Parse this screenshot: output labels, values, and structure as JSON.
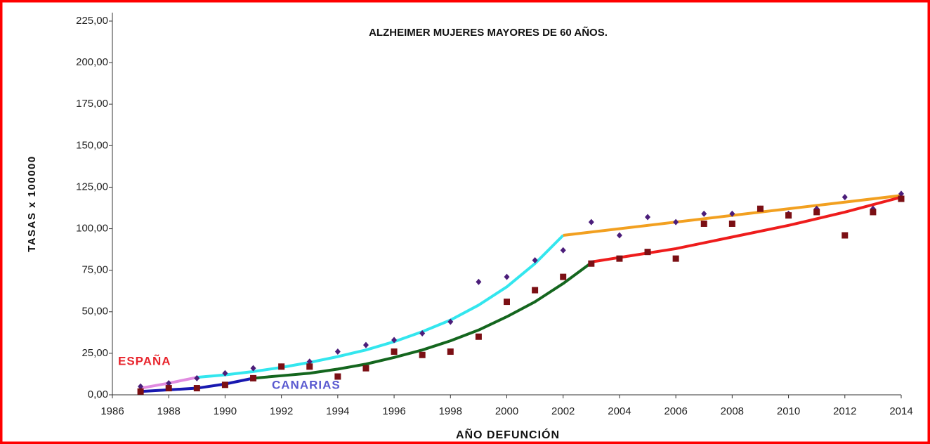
{
  "chart_data": {
    "type": "scatter",
    "title": "ALZHEIMER MUJERES MAYORES DE 60 AÑOS.",
    "x_label": "AÑO DEFUNCIÓN",
    "y_label": "TASAS x 100000",
    "xlim": [
      1986,
      2014
    ],
    "xticks": [
      1986,
      1988,
      1990,
      1992,
      1994,
      1996,
      1998,
      2000,
      2002,
      2004,
      2006,
      2008,
      2010,
      2012,
      2014
    ],
    "ylim": [
      0,
      225
    ],
    "yticks": [
      {
        "value": 0,
        "label": "0,00"
      },
      {
        "value": 25,
        "label": "25,00"
      },
      {
        "value": 50,
        "label": "50,00"
      },
      {
        "value": 75,
        "label": "75,00"
      },
      {
        "value": 100,
        "label": "100,00"
      },
      {
        "value": 125,
        "label": "125,00"
      },
      {
        "value": 150,
        "label": "150,00"
      },
      {
        "value": 175,
        "label": "175,00"
      },
      {
        "value": 200,
        "label": "200,00"
      },
      {
        "value": 225,
        "label": "225,00"
      }
    ],
    "annotations": [
      {
        "text": "ESPAÑA",
        "color": "#e8242c"
      },
      {
        "text": "CANARIAS",
        "color": "#5a5ad0"
      }
    ],
    "series": [
      {
        "color": "#4b1d7a",
        "marker": "diamond",
        "x": [
          1987,
          1988,
          1989,
          1990,
          1991,
          1992,
          1993,
          1994,
          1995,
          1996,
          1997,
          1998,
          1999,
          2000,
          2001,
          2002,
          2003,
          2004,
          2005,
          2006,
          2007,
          2008,
          2009,
          2010,
          2011,
          2012,
          2013,
          2014
        ],
        "values": [
          5,
          7,
          10,
          13,
          16,
          17,
          20,
          26,
          30,
          33,
          37,
          44,
          68,
          71,
          81,
          87,
          104,
          96,
          107,
          104,
          109,
          109,
          112,
          109,
          112,
          119,
          112,
          121
        ]
      },
      {
        "color": "#7b0f14",
        "marker": "square",
        "x": [
          1987,
          1988,
          1989,
          1990,
          1991,
          1992,
          1993,
          1994,
          1995,
          1996,
          1997,
          1998,
          1999,
          2000,
          2001,
          2002,
          2003,
          2004,
          2005,
          2006,
          2007,
          2008,
          2009,
          2010,
          2011,
          2012,
          2013,
          2014
        ],
        "values": [
          2,
          4,
          4,
          6,
          10,
          17,
          17,
          11,
          16,
          26,
          24,
          26,
          35,
          56,
          63,
          71,
          79,
          82,
          86,
          82,
          103,
          103,
          112,
          108,
          110,
          96,
          110,
          118
        ]
      },
      {
        "color": "#e08be0",
        "marker": "line",
        "x": [
          1987,
          1988,
          1989
        ],
        "values": [
          4,
          7,
          10.5
        ]
      },
      {
        "color": "#33e6ee",
        "marker": "line",
        "x": [
          1989,
          1990,
          1991,
          1992,
          1993,
          1994,
          1995,
          1996,
          1997,
          1998,
          1999,
          2000,
          2001,
          2002
        ],
        "values": [
          10.5,
          12,
          14,
          16.5,
          19.5,
          23,
          27,
          32,
          38,
          45,
          54,
          65,
          79,
          96
        ]
      },
      {
        "color": "#f2a020",
        "marker": "line",
        "x": [
          2002,
          2014
        ],
        "values": [
          96,
          120
        ]
      },
      {
        "color": "#1818b0",
        "marker": "line",
        "x": [
          1987,
          1988,
          1989,
          1990,
          1991
        ],
        "values": [
          2,
          3,
          4,
          6.5,
          10
        ]
      },
      {
        "color": "#14661e",
        "marker": "line",
        "x": [
          1991,
          1992,
          1993,
          1994,
          1995,
          1996,
          1997,
          1998,
          1999,
          2000,
          2001,
          2002,
          2003
        ],
        "values": [
          10,
          11.5,
          13,
          15.5,
          18.5,
          22.5,
          27,
          32.5,
          39,
          47,
          56,
          67,
          79.5
        ]
      },
      {
        "color": "#ee1c1c",
        "marker": "line",
        "x": [
          2003,
          2006,
          2008,
          2010,
          2012,
          2014
        ],
        "values": [
          80,
          88,
          95,
          102,
          110,
          119
        ]
      }
    ]
  }
}
